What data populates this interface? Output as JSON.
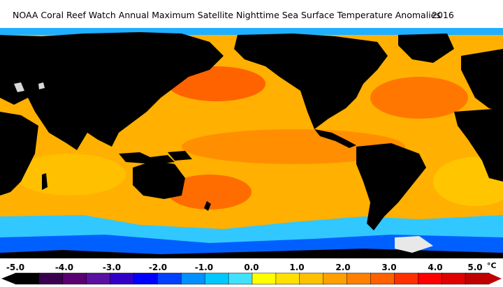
{
  "title": "NOAA Coral Reef Watch Annual Maximum Satellite Nighttime Sea Surface Temperature Anomalies",
  "year": "2016",
  "legend": {
    "ticks": [
      "-5.0",
      "-4.0",
      "-3.0",
      "-2.0",
      "-1.0",
      "0.0",
      "1.0",
      "2.0",
      "3.0",
      "4.0",
      "5.0"
    ],
    "unit": "°C",
    "colors": [
      "#000000",
      "#3a0050",
      "#5a0070",
      "#5a10a0",
      "#3000c8",
      "#0000ff",
      "#0040ff",
      "#0090ff",
      "#00c8ff",
      "#40e0ff",
      "#ffff00",
      "#ffe000",
      "#ffc000",
      "#ffa000",
      "#ff8000",
      "#ff6000",
      "#ff3000",
      "#ff0000",
      "#e00000",
      "#c00000"
    ]
  },
  "map_colors": {
    "land": "#000000",
    "ocean_base": "#ffb000",
    "warm": "#ff7a00",
    "hot": "#ff3000",
    "neutral": "#ffe000",
    "cool": "#30c8ff",
    "cold": "#0050ff",
    "ice": "#d8d8d8"
  }
}
